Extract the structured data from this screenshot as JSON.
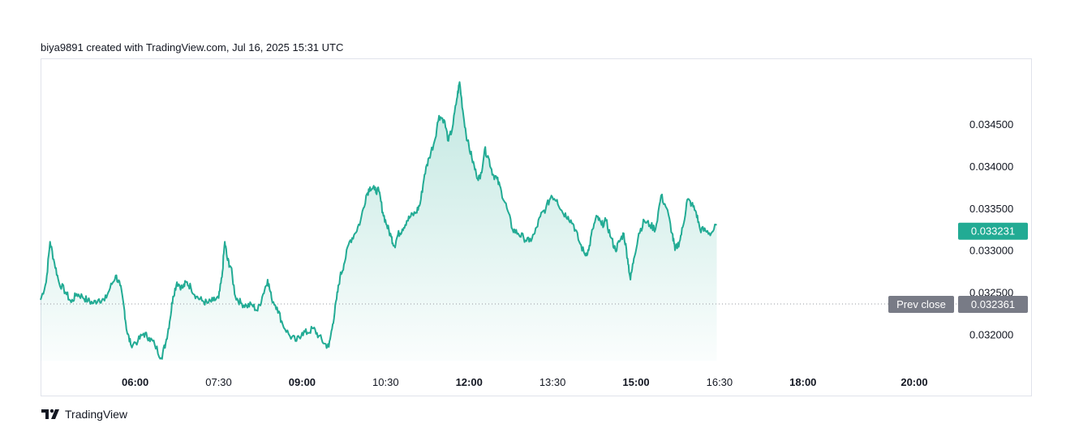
{
  "header": {
    "caption": "biya9891 created with TradingView.com, Jul 16, 2025 15:31 UTC"
  },
  "footer": {
    "brand": "TradingView",
    "logo_icon": "tradingview-logo-icon"
  },
  "colors": {
    "line": "#22ab94",
    "fill_top": "#22ab94",
    "last_price_badge": "#22ab94",
    "prev_close_badge": "#787b86",
    "grid_dot": "#9598a1"
  },
  "chart_data": {
    "type": "area",
    "title": "",
    "xlabel": "",
    "ylabel": "",
    "x_ticks": [
      {
        "label": "06:00",
        "bold": true
      },
      {
        "label": "07:30",
        "bold": false
      },
      {
        "label": "09:00",
        "bold": true
      },
      {
        "label": "10:30",
        "bold": false
      },
      {
        "label": "12:00",
        "bold": true
      },
      {
        "label": "13:30",
        "bold": false
      },
      {
        "label": "15:00",
        "bold": true
      },
      {
        "label": "16:30",
        "bold": false
      },
      {
        "label": "18:00",
        "bold": true
      },
      {
        "label": "20:00",
        "bold": true
      }
    ],
    "x_tick_hours": [
      6.0,
      7.5,
      9.0,
      10.5,
      12.0,
      13.5,
      15.0,
      16.5,
      18.0,
      20.0
    ],
    "x_range_hours": [
      4.3,
      20.7
    ],
    "y_ticks": [
      "0.032000",
      "0.032500",
      "0.033000",
      "0.033500",
      "0.034000",
      "0.034500"
    ],
    "ylim": [
      0.031686,
      0.035272
    ],
    "last_price": {
      "label": "0.033231",
      "value": 0.033231
    },
    "prev_close": {
      "label": "Prev close",
      "value_label": "0.032361",
      "value": 0.032361
    },
    "series": [
      {
        "points": [
          [
            4.3,
            0.03241
          ],
          [
            4.4,
            0.03262
          ],
          [
            4.47,
            0.0331
          ],
          [
            4.55,
            0.03285
          ],
          [
            4.63,
            0.03262
          ],
          [
            4.75,
            0.0325
          ],
          [
            4.85,
            0.03238
          ],
          [
            4.95,
            0.03248
          ],
          [
            5.05,
            0.03245
          ],
          [
            5.15,
            0.0324
          ],
          [
            5.25,
            0.03237
          ],
          [
            5.35,
            0.03242
          ],
          [
            5.45,
            0.0324
          ],
          [
            5.55,
            0.03255
          ],
          [
            5.65,
            0.0327
          ],
          [
            5.73,
            0.03258
          ],
          [
            5.8,
            0.03232
          ],
          [
            5.85,
            0.03204
          ],
          [
            5.92,
            0.03188
          ],
          [
            6.05,
            0.03192
          ],
          [
            6.15,
            0.03201
          ],
          [
            6.25,
            0.03196
          ],
          [
            6.35,
            0.03188
          ],
          [
            6.47,
            0.03172
          ],
          [
            6.55,
            0.0319
          ],
          [
            6.62,
            0.03215
          ],
          [
            6.68,
            0.03245
          ],
          [
            6.75,
            0.03262
          ],
          [
            6.85,
            0.03255
          ],
          [
            6.92,
            0.03262
          ],
          [
            7.0,
            0.03256
          ],
          [
            7.1,
            0.03245
          ],
          [
            7.2,
            0.0324
          ],
          [
            7.3,
            0.03237
          ],
          [
            7.4,
            0.0324
          ],
          [
            7.5,
            0.03243
          ],
          [
            7.56,
            0.03268
          ],
          [
            7.61,
            0.0331
          ],
          [
            7.66,
            0.03288
          ],
          [
            7.72,
            0.0328
          ],
          [
            7.8,
            0.03245
          ],
          [
            7.9,
            0.03237
          ],
          [
            8.0,
            0.03234
          ],
          [
            8.1,
            0.03235
          ],
          [
            8.2,
            0.03228
          ],
          [
            8.3,
            0.03248
          ],
          [
            8.38,
            0.03265
          ],
          [
            8.45,
            0.03243
          ],
          [
            8.55,
            0.03232
          ],
          [
            8.65,
            0.03212
          ],
          [
            8.78,
            0.03198
          ],
          [
            8.9,
            0.03192
          ],
          [
            9.0,
            0.03202
          ],
          [
            9.1,
            0.03202
          ],
          [
            9.2,
            0.03207
          ],
          [
            9.3,
            0.03198
          ],
          [
            9.4,
            0.03189
          ],
          [
            9.48,
            0.03185
          ],
          [
            9.55,
            0.03212
          ],
          [
            9.62,
            0.03242
          ],
          [
            9.68,
            0.03268
          ],
          [
            9.75,
            0.03283
          ],
          [
            9.85,
            0.0331
          ],
          [
            9.95,
            0.0332
          ],
          [
            10.05,
            0.03335
          ],
          [
            10.15,
            0.03365
          ],
          [
            10.22,
            0.03375
          ],
          [
            10.3,
            0.03372
          ],
          [
            10.38,
            0.0337
          ],
          [
            10.45,
            0.03345
          ],
          [
            10.52,
            0.0333
          ],
          [
            10.6,
            0.03316
          ],
          [
            10.66,
            0.03305
          ],
          [
            10.72,
            0.03318
          ],
          [
            10.8,
            0.03325
          ],
          [
            10.88,
            0.03335
          ],
          [
            10.95,
            0.0334
          ],
          [
            11.05,
            0.03345
          ],
          [
            11.12,
            0.03355
          ],
          [
            11.2,
            0.0339
          ],
          [
            11.28,
            0.0341
          ],
          [
            11.38,
            0.0343
          ],
          [
            11.46,
            0.0346
          ],
          [
            11.55,
            0.03455
          ],
          [
            11.63,
            0.0343
          ],
          [
            11.7,
            0.03445
          ],
          [
            11.78,
            0.0348
          ],
          [
            11.83,
            0.035
          ],
          [
            11.9,
            0.0346
          ],
          [
            11.97,
            0.0343
          ],
          [
            12.05,
            0.0341
          ],
          [
            12.13,
            0.0339
          ],
          [
            12.2,
            0.03385
          ],
          [
            12.28,
            0.0342
          ],
          [
            12.35,
            0.0341
          ],
          [
            12.43,
            0.0339
          ],
          [
            12.5,
            0.03385
          ],
          [
            12.58,
            0.0337
          ],
          [
            12.68,
            0.0335
          ],
          [
            12.78,
            0.03325
          ],
          [
            12.88,
            0.0332
          ],
          [
            12.98,
            0.03315
          ],
          [
            13.08,
            0.0331
          ],
          [
            13.18,
            0.0332
          ],
          [
            13.28,
            0.0334
          ],
          [
            13.38,
            0.0335
          ],
          [
            13.48,
            0.03365
          ],
          [
            13.58,
            0.0336
          ],
          [
            13.68,
            0.03345
          ],
          [
            13.78,
            0.0334
          ],
          [
            13.88,
            0.0333
          ],
          [
            13.98,
            0.0331
          ],
          [
            14.08,
            0.03295
          ],
          [
            14.15,
            0.033
          ],
          [
            14.22,
            0.03325
          ],
          [
            14.3,
            0.0334
          ],
          [
            14.38,
            0.0333
          ],
          [
            14.46,
            0.03335
          ],
          [
            14.55,
            0.03315
          ],
          [
            14.63,
            0.033
          ],
          [
            14.7,
            0.0331
          ],
          [
            14.78,
            0.0332
          ],
          [
            14.85,
            0.0329
          ],
          [
            14.9,
            0.03265
          ],
          [
            14.96,
            0.0329
          ],
          [
            15.05,
            0.0332
          ],
          [
            15.15,
            0.03335
          ],
          [
            15.25,
            0.0333
          ],
          [
            15.35,
            0.03325
          ],
          [
            15.45,
            0.03365
          ],
          [
            15.55,
            0.0335
          ],
          [
            15.65,
            0.0332
          ],
          [
            15.7,
            0.033
          ],
          [
            15.78,
            0.0331
          ],
          [
            15.85,
            0.0333
          ],
          [
            15.92,
            0.0336
          ],
          [
            16.0,
            0.03355
          ],
          [
            16.08,
            0.03345
          ],
          [
            16.15,
            0.03325
          ],
          [
            16.25,
            0.03323
          ],
          [
            16.35,
            0.0332
          ],
          [
            16.45,
            0.0333
          ]
        ]
      }
    ]
  }
}
